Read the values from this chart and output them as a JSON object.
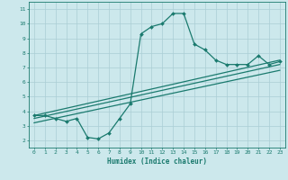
{
  "title": "",
  "xlabel": "Humidex (Indice chaleur)",
  "bg_color": "#cce8ec",
  "line_color": "#1a7a6e",
  "grid_color": "#aacdd4",
  "xlim": [
    -0.5,
    23.5
  ],
  "ylim": [
    1.5,
    11.5
  ],
  "xticks": [
    0,
    1,
    2,
    3,
    4,
    5,
    6,
    7,
    8,
    9,
    10,
    11,
    12,
    13,
    14,
    15,
    16,
    17,
    18,
    19,
    20,
    21,
    22,
    23
  ],
  "yticks": [
    2,
    3,
    4,
    5,
    6,
    7,
    8,
    9,
    10,
    11
  ],
  "curve1_x": [
    0,
    1,
    2,
    3,
    4,
    5,
    6,
    7,
    8,
    9,
    10,
    11,
    12,
    13,
    14,
    15,
    16,
    17,
    18,
    19,
    20,
    21,
    22,
    23
  ],
  "curve1_y": [
    3.7,
    3.7,
    3.5,
    3.3,
    3.5,
    2.2,
    2.1,
    2.5,
    3.5,
    4.5,
    9.3,
    9.8,
    10.0,
    10.7,
    10.7,
    8.6,
    8.2,
    7.5,
    7.2,
    7.2,
    7.2,
    7.8,
    7.2,
    7.4
  ],
  "line2_x": [
    0,
    23
  ],
  "line2_y": [
    3.7,
    7.5
  ],
  "line3_x": [
    0,
    23
  ],
  "line3_y": [
    3.5,
    7.2
  ],
  "line4_x": [
    0,
    23
  ],
  "line4_y": [
    3.2,
    6.8
  ]
}
